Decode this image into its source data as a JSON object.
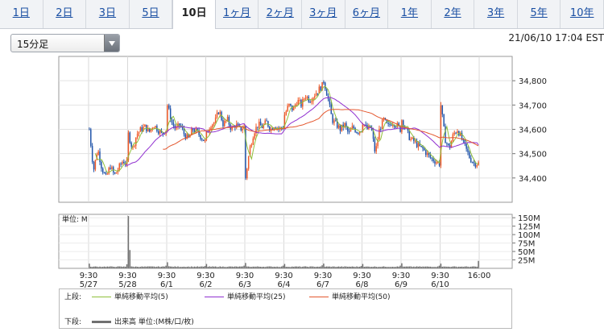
{
  "tabs": [
    {
      "label": "1日",
      "active": false
    },
    {
      "label": "2日",
      "active": false
    },
    {
      "label": "3日",
      "active": false
    },
    {
      "label": "5日",
      "active": false
    },
    {
      "label": "10日",
      "active": true
    },
    {
      "label": "1ヶ月",
      "active": false
    },
    {
      "label": "2ヶ月",
      "active": false
    },
    {
      "label": "3ヶ月",
      "active": false
    },
    {
      "label": "6ヶ月",
      "active": false
    },
    {
      "label": "1年",
      "active": false
    },
    {
      "label": "2年",
      "active": false
    },
    {
      "label": "3年",
      "active": false
    },
    {
      "label": "5年",
      "active": false
    },
    {
      "label": "10年",
      "active": false
    }
  ],
  "interval_select": {
    "value": "15分足"
  },
  "timestamp": "21/06/10 17:04 EST",
  "chart_data": {
    "type": "candlestick",
    "price": {
      "ylim": [
        34300,
        34900
      ],
      "yticks": [
        34400,
        34500,
        34600,
        34700,
        34800
      ],
      "ytick_labels": [
        "34,400",
        "34,500",
        "34,600",
        "34,700",
        "34,800"
      ],
      "closes_by_day": [
        {
          "day": "5/27",
          "closes": [
            34600,
            34430,
            34520,
            34440,
            34400,
            34450,
            34410,
            34440,
            34470,
            34460
          ]
        },
        {
          "day": "5/28",
          "closes": [
            34580,
            34520,
            34580,
            34600,
            34610,
            34590,
            34620,
            34600,
            34580,
            34600
          ]
        },
        {
          "day": "6/1",
          "closes": [
            34700,
            34630,
            34600,
            34620,
            34580,
            34560,
            34600,
            34590,
            34570,
            34550
          ]
        },
        {
          "day": "6/2",
          "closes": [
            34580,
            34620,
            34630,
            34680,
            34620,
            34640,
            34600,
            34620,
            34600,
            34610
          ]
        },
        {
          "day": "6/3",
          "closes": [
            34400,
            34520,
            34590,
            34620,
            34610,
            34630,
            34600,
            34620,
            34600,
            34610
          ]
        },
        {
          "day": "6/4",
          "closes": [
            34660,
            34700,
            34680,
            34720,
            34700,
            34740,
            34720,
            34740,
            34760,
            34780
          ]
        },
        {
          "day": "6/7",
          "closes": [
            34800,
            34730,
            34640,
            34620,
            34600,
            34620,
            34580,
            34610,
            34590,
            34600
          ]
        },
        {
          "day": "6/8",
          "closes": [
            34630,
            34600,
            34610,
            34500,
            34600,
            34640,
            34610,
            34630,
            34620,
            34600
          ]
        },
        {
          "day": "6/9",
          "closes": [
            34640,
            34600,
            34560,
            34550,
            34530,
            34520,
            34500,
            34480,
            34470,
            34460
          ]
        },
        {
          "day": "6/10",
          "closes": [
            34700,
            34560,
            34520,
            34580,
            34600,
            34560,
            34520,
            34480,
            34460,
            34460
          ]
        }
      ]
    },
    "volume": {
      "unit_label": "単位: M",
      "ylim": [
        0,
        160
      ],
      "yticks": [
        25,
        50,
        75,
        100,
        125,
        150
      ],
      "ytick_labels": [
        "25M",
        "50M",
        "75M",
        "100M",
        "125M",
        "150M"
      ],
      "session_open_volumes": [
        14,
        155,
        18,
        13,
        16,
        13,
        14,
        13,
        15,
        14
      ],
      "session_close_volumes": [
        12,
        8,
        7,
        8,
        8,
        9,
        7,
        8,
        8,
        22
      ],
      "typical_volume": 4
    },
    "x_ticks": [
      {
        "time": "9:30",
        "date": "5/27"
      },
      {
        "time": "9:30",
        "date": "5/28"
      },
      {
        "time": "9:30",
        "date": "6/1"
      },
      {
        "time": "9:30",
        "date": "6/2"
      },
      {
        "time": "9:30",
        "date": "6/3"
      },
      {
        "time": "9:30",
        "date": "6/4"
      },
      {
        "time": "9:30",
        "date": "6/7"
      },
      {
        "time": "9:30",
        "date": "6/8"
      },
      {
        "time": "9:30",
        "date": "6/9"
      },
      {
        "time": "9:30",
        "date": "6/10"
      },
      {
        "time": "16:00",
        "date": ""
      }
    ],
    "bars_per_day": 26,
    "colors": {
      "up": "#f05a28",
      "down": "#2255aa",
      "ma5": "#8fbf3a",
      "ma25": "#9030d0",
      "ma50": "#e4572e",
      "volume": "#707070"
    }
  },
  "legend": {
    "upper_label": "上段:",
    "lower_label": "下段:",
    "ma5": "単純移動平均(5)",
    "ma25": "単純移動平均(25)",
    "ma50": "単純移動平均(50)",
    "volume": "出来高 単位:(M株/口/枚)"
  }
}
